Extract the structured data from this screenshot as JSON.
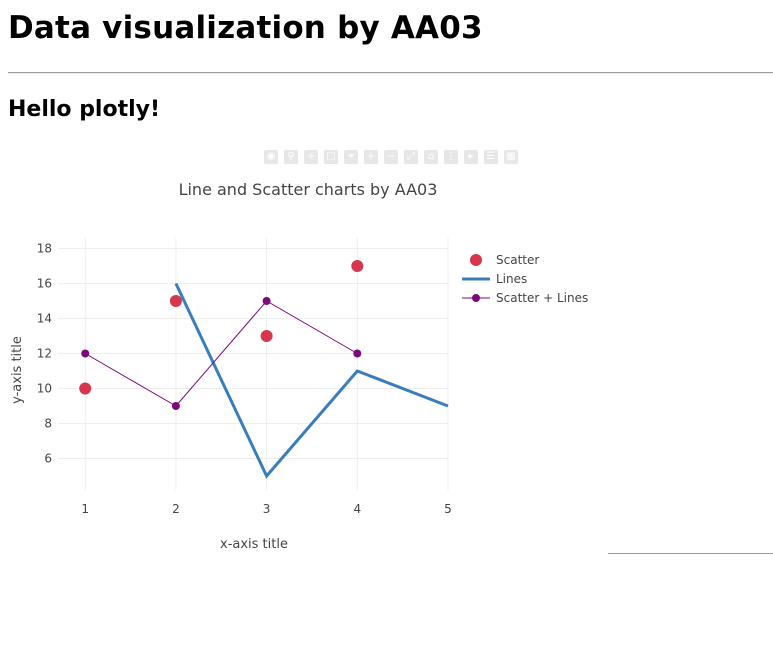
{
  "page": {
    "title": "Data visualization by AA03",
    "subtitle": "Hello plotly!"
  },
  "modebar": {
    "icons": [
      "camera-icon",
      "zoom-icon",
      "pan-icon",
      "select-box-icon",
      "lasso-icon",
      "zoom-in-icon",
      "zoom-out-icon",
      "autoscale-icon",
      "reset-axes-icon",
      "spike-lines-icon",
      "hover-closest-icon",
      "hover-compare-icon",
      "plotly-logo-icon"
    ]
  },
  "chart_data": {
    "type": "line",
    "title": "Line and Scatter charts by AA03",
    "xlabel": "x-axis title",
    "ylabel": "y-axis title",
    "xlim": [
      0.7,
      5
    ],
    "ylim": [
      4.2,
      18.6
    ],
    "xticks": [
      1,
      2,
      3,
      4,
      5
    ],
    "yticks": [
      6,
      8,
      10,
      12,
      14,
      16,
      18
    ],
    "grid": true,
    "legend_position": "top-right",
    "series": [
      {
        "name": "Scatter",
        "mode": "markers",
        "color": "#d7374e",
        "x": [
          1,
          2,
          3,
          4
        ],
        "y": [
          10,
          15,
          13,
          17
        ]
      },
      {
        "name": "Lines",
        "mode": "lines",
        "color": "#3a7dbd",
        "x": [
          2,
          3,
          4,
          5
        ],
        "y": [
          16,
          5,
          11,
          9
        ]
      },
      {
        "name": "Scatter + Lines",
        "mode": "lines+markers",
        "color": "#7a0a7a",
        "x": [
          1,
          2,
          3,
          4
        ],
        "y": [
          12,
          9,
          15,
          12
        ]
      }
    ]
  }
}
